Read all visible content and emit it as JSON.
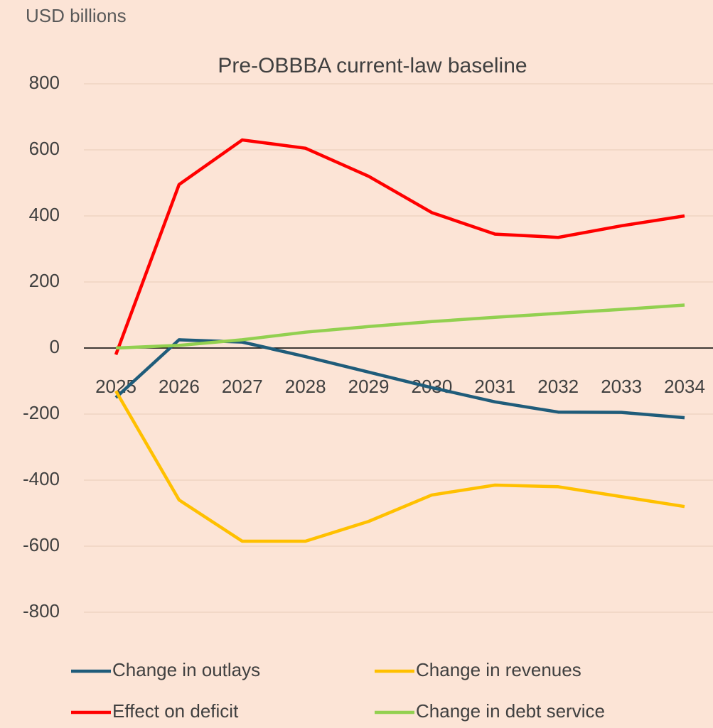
{
  "chart_data": {
    "type": "line",
    "title": "Pre-OBBBA current-law baseline",
    "y_label": "USD billions",
    "x": [
      2025,
      2026,
      2027,
      2028,
      2029,
      2030,
      2031,
      2032,
      2033,
      2034
    ],
    "ylim": [
      -800,
      800
    ],
    "yticks": [
      -800,
      -600,
      -400,
      -200,
      0,
      200,
      400,
      600,
      800
    ],
    "grid": true,
    "legend": "bottom",
    "series": [
      {
        "name": "Change in outlays",
        "color": "#1f5c7a",
        "values": [
          -150,
          25,
          18,
          -26,
          -73,
          -120,
          -163,
          -194,
          -195,
          -211
        ]
      },
      {
        "name": "Change in revenues",
        "color": "#ffc000",
        "values": [
          -130,
          -460,
          -585,
          -585,
          -525,
          -445,
          -415,
          -420,
          -450,
          -480
        ]
      },
      {
        "name": "Effect on deficit",
        "color": "#ff0000",
        "values": [
          -20,
          495,
          630,
          605,
          520,
          410,
          345,
          335,
          370,
          400
        ]
      },
      {
        "name": "Change in debt service",
        "color": "#92d050",
        "values": [
          0,
          8,
          25,
          48,
          65,
          80,
          93,
          105,
          117,
          130
        ]
      }
    ]
  }
}
